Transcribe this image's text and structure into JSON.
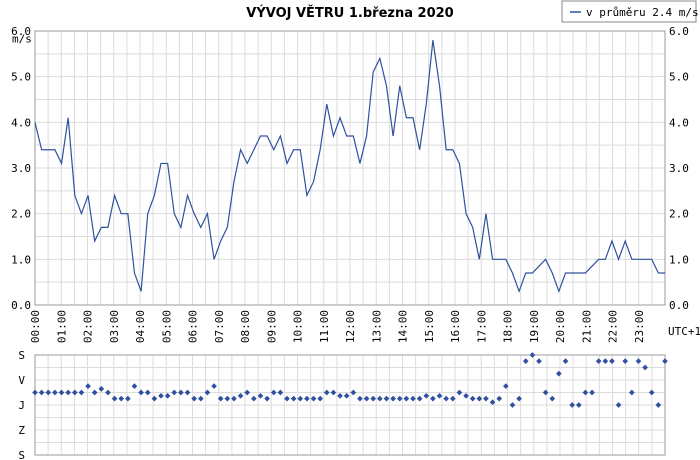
{
  "chart_data": [
    {
      "type": "line",
      "title": "VÝVOJ VĚTRU  1.března 2020",
      "ylabel": "m/s",
      "xlabel": "UTC+1",
      "ylim": [
        0,
        6
      ],
      "yticks": [
        "0.0",
        "1.0",
        "2.0",
        "3.0",
        "4.0",
        "5.0",
        "6.0"
      ],
      "xticks": [
        "00:00",
        "01:00",
        "02:00",
        "03:00",
        "04:00",
        "05:00",
        "06:00",
        "07:00",
        "08:00",
        "09:00",
        "10:00",
        "11:00",
        "12:00",
        "13:00",
        "14:00",
        "15:00",
        "16:00",
        "17:00",
        "18:00",
        "19:00",
        "20:00",
        "21:00",
        "22:00",
        "23:00"
      ],
      "grid": true,
      "legend": "top-right",
      "line_color": "#3050a0",
      "series": [
        {
          "name": "v průměru 2.4 m/s",
          "values": [
            4.0,
            3.4,
            3.4,
            3.4,
            3.1,
            4.1,
            2.4,
            2.0,
            2.4,
            1.4,
            1.7,
            1.7,
            2.4,
            2.0,
            2.0,
            0.7,
            0.3,
            2.0,
            2.4,
            3.1,
            3.1,
            2.0,
            1.7,
            2.4,
            2.0,
            1.7,
            2.0,
            1.0,
            1.4,
            1.7,
            2.7,
            3.4,
            3.1,
            3.4,
            3.7,
            3.7,
            3.4,
            3.7,
            3.1,
            3.4,
            3.4,
            2.4,
            2.7,
            3.4,
            4.4,
            3.7,
            4.1,
            3.7,
            3.7,
            3.1,
            3.7,
            5.1,
            5.4,
            4.8,
            3.7,
            4.8,
            4.1,
            4.1,
            3.4,
            4.4,
            5.8,
            4.8,
            3.4,
            3.4,
            3.1,
            2.0,
            1.7,
            1.0,
            2.0,
            1.0,
            1.0,
            1.0,
            0.7,
            0.3,
            0.7,
            0.7,
            0.85,
            1.0,
            0.7,
            0.3,
            0.7,
            0.7,
            0.7,
            0.7,
            0.85,
            1.0,
            1.0,
            1.4,
            1.0,
            1.4,
            1.0,
            1.0,
            1.0,
            1.0,
            0.7,
            0.7
          ]
        }
      ]
    },
    {
      "type": "scatter",
      "yticks": [
        "S",
        "V",
        "J",
        "Z",
        "S"
      ],
      "ylim": [
        0,
        360
      ],
      "point_color": "#3050a0",
      "values": [
        225,
        225,
        225,
        225,
        225,
        225,
        225,
        225,
        248,
        225,
        238,
        225,
        203,
        203,
        203,
        248,
        225,
        225,
        203,
        213,
        213,
        225,
        225,
        225,
        203,
        203,
        225,
        248,
        203,
        203,
        203,
        213,
        225,
        203,
        213,
        203,
        225,
        225,
        203,
        203,
        203,
        203,
        203,
        203,
        225,
        225,
        213,
        213,
        225,
        203,
        203,
        203,
        203,
        203,
        203,
        203,
        203,
        203,
        203,
        213,
        203,
        213,
        203,
        203,
        225,
        213,
        203,
        203,
        203,
        190,
        203,
        248,
        180,
        203,
        338,
        360,
        338,
        225,
        203,
        293,
        338,
        180,
        180,
        225,
        225,
        338,
        338,
        338,
        180,
        338,
        225,
        338,
        315,
        225,
        180,
        338
      ]
    }
  ]
}
